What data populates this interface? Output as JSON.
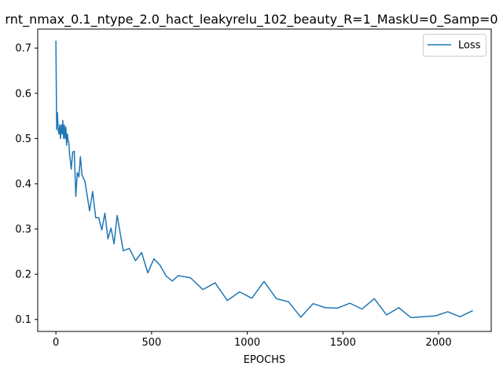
{
  "chart_data": {
    "type": "line",
    "title": "rnt_nmax_0.1_ntype_2.0_hact_leakyrelu_102_beauty_R=1_MaskU=0_Samp=0",
    "xlabel": "EPOCHS",
    "ylabel": "",
    "xlim": [
      -95,
      2275
    ],
    "ylim": [
      0.0735,
      0.742
    ],
    "xticks": [
      0,
      500,
      1000,
      1500,
      2000
    ],
    "yticks": [
      0.1,
      0.2,
      0.3,
      0.4,
      0.5,
      0.6,
      0.7
    ],
    "ytick_labels": [
      "0.1",
      "0.2",
      "0.3",
      "0.4",
      "0.5",
      "0.6",
      "0.7"
    ],
    "grid": false,
    "legend_position": "top-right",
    "series": [
      {
        "name": "Loss",
        "color": "#1f77b4",
        "x": [
          0,
          4,
          8,
          12,
          16,
          20,
          24,
          28,
          32,
          36,
          40,
          44,
          48,
          52,
          56,
          60,
          64,
          68,
          72,
          76,
          80,
          88,
          96,
          104,
          112,
          120,
          128,
          136,
          152,
          176,
          192,
          208,
          224,
          240,
          256,
          272,
          288,
          304,
          320,
          352,
          384,
          416,
          448,
          480,
          512,
          544,
          576,
          608,
          640,
          704,
          768,
          832,
          896,
          960,
          1024,
          1088,
          1152,
          1216,
          1280,
          1344,
          1408,
          1472,
          1536,
          1600,
          1664,
          1728,
          1792,
          1856,
          1984,
          2048,
          2112,
          2176
        ],
        "values": [
          0.715,
          0.52,
          0.557,
          0.52,
          0.51,
          0.53,
          0.5,
          0.53,
          0.51,
          0.54,
          0.5,
          0.53,
          0.5,
          0.525,
          0.485,
          0.51,
          0.495,
          0.49,
          0.462,
          0.45,
          0.432,
          0.47,
          0.472,
          0.372,
          0.425,
          0.415,
          0.46,
          0.42,
          0.405,
          0.34,
          0.383,
          0.325,
          0.325,
          0.298,
          0.335,
          0.278,
          0.302,
          0.267,
          0.33,
          0.252,
          0.257,
          0.23,
          0.248,
          0.203,
          0.234,
          0.22,
          0.196,
          0.185,
          0.197,
          0.192,
          0.166,
          0.181,
          0.142,
          0.161,
          0.147,
          0.184,
          0.146,
          0.139,
          0.105,
          0.135,
          0.126,
          0.125,
          0.136,
          0.123,
          0.146,
          0.11,
          0.126,
          0.104,
          0.108,
          0.117,
          0.106,
          0.119
        ]
      }
    ]
  }
}
